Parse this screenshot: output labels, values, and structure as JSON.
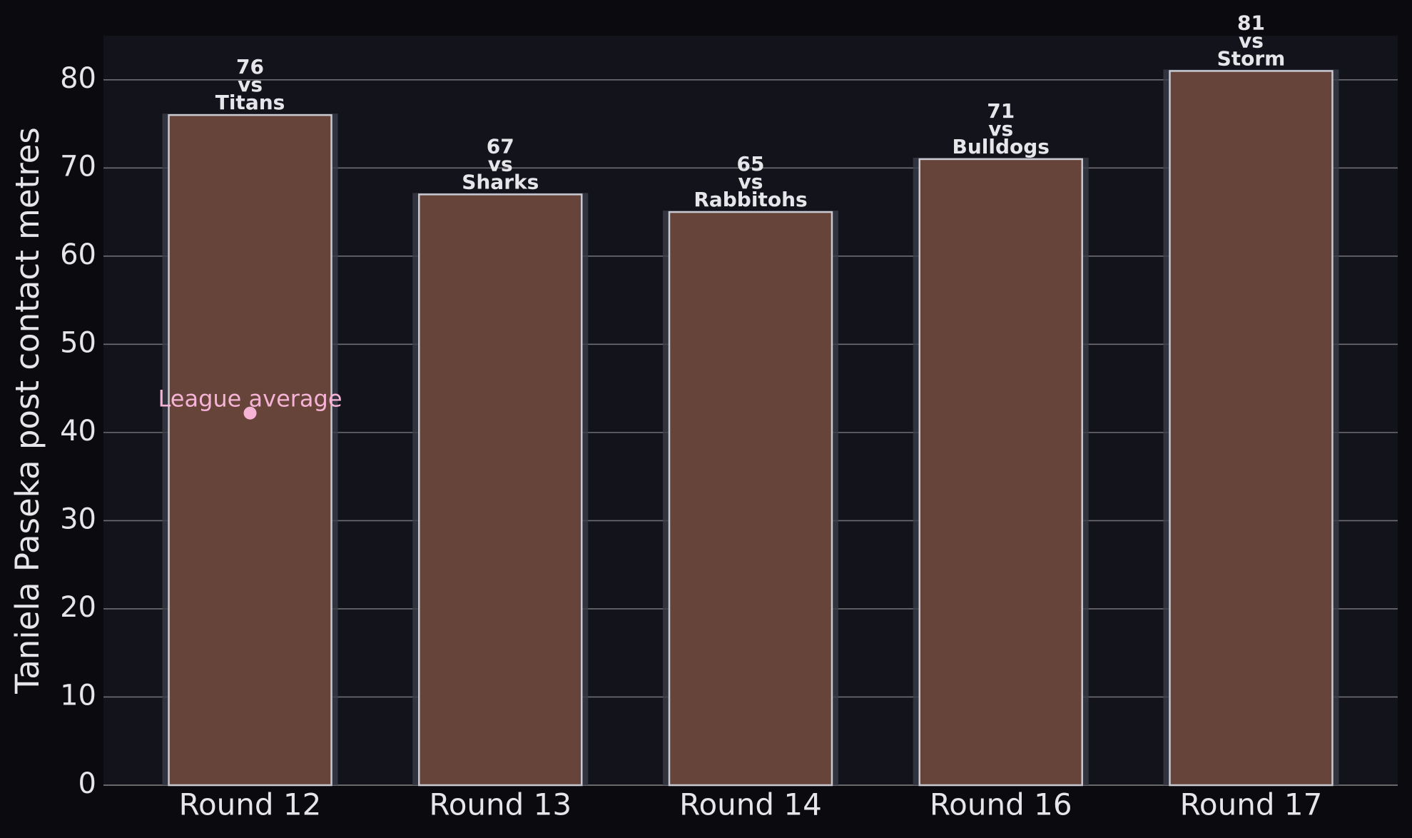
{
  "chart_data": {
    "type": "bar",
    "y_label": "Taniela Paseka post contact metres",
    "categories": [
      "Round 12",
      "Round 13",
      "Round 14",
      "Round 16",
      "Round 17"
    ],
    "values": [
      76,
      67,
      65,
      71,
      81
    ],
    "opponents": [
      "Titans",
      "Sharks",
      "Rabbitohs",
      "Bulldogs",
      "Storm"
    ],
    "versus": "vs",
    "color": "#66443a",
    "ylim": [
      0,
      85
    ],
    "yticks": [
      0,
      10,
      20,
      30,
      40,
      50,
      60,
      70,
      80
    ],
    "grid": true,
    "league_average": {
      "label": "League average",
      "value": 42.2,
      "color": "#f5b3d6"
    }
  }
}
